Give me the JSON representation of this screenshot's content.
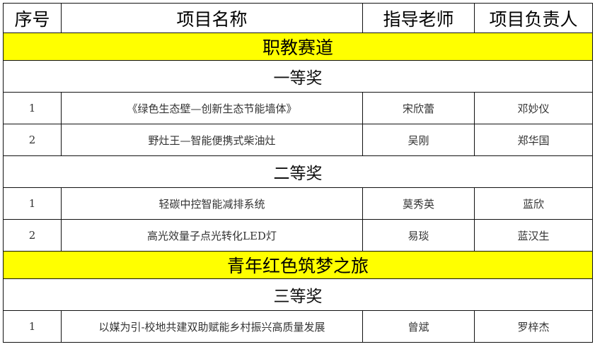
{
  "header": [
    "序号",
    "项目名称",
    "指导老师",
    "项目负责人"
  ],
  "section_color": "#ffff00",
  "sections": [
    {
      "title": "职教赛道",
      "prizes": [
        {
          "title": "一等奖",
          "rows": [
            [
              "1",
              "《绿色生态壁—创新生态节能墙体》",
              "宋欣蕾",
              "邓妙仪"
            ],
            [
              "2",
              "野灶王—智能便携式柴油灶",
              "吴刚",
              "郑华国"
            ]
          ]
        },
        {
          "title": "二等奖",
          "rows": [
            [
              "1",
              "轻碳中控智能减排系统",
              "莫秀英",
              "蓝欣"
            ],
            [
              "2",
              "高光效量子点光转化LED灯",
              "易琰",
              "蓝汉生"
            ]
          ]
        }
      ]
    },
    {
      "title": "青年红色筑梦之旅",
      "prizes": [
        {
          "title": "三等奖",
          "rows": [
            [
              "1",
              "以媒为引-校地共建双助赋能乡村振兴高质量发展",
              "曾斌",
              "罗梓杰"
            ]
          ]
        }
      ]
    }
  ]
}
